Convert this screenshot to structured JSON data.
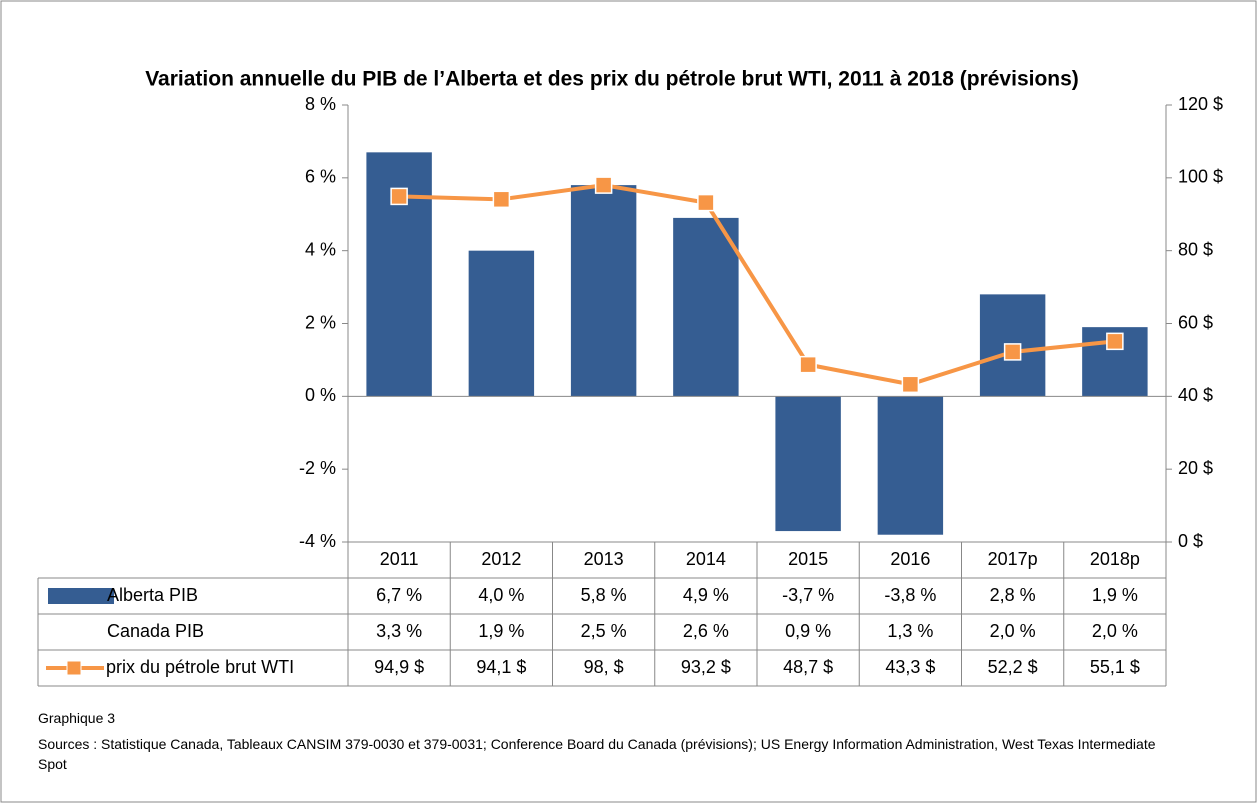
{
  "chart_data": {
    "type": "bar",
    "title": "Variation annuelle du PIB de l’Alberta et des prix du pétrole brut WTI, 2011 à 2018 (prévisions)",
    "categories": [
      "2011",
      "2012",
      "2013",
      "2014",
      "2015",
      "2016",
      "2017p",
      "2018p"
    ],
    "series": [
      {
        "name": "Alberta PIB",
        "type": "bar",
        "color": "#355d92",
        "values": [
          6.7,
          4.0,
          5.8,
          4.9,
          -3.7,
          -3.8,
          2.8,
          1.9
        ],
        "value_labels": [
          "6,7 %",
          "4,0 %",
          "5,8 %",
          "4,9 %",
          "-3,7 %",
          "-3,8 %",
          "2,8 %",
          "1,9 %"
        ]
      },
      {
        "name": "Canada PIB",
        "values": [
          3.3,
          1.9,
          2.5,
          2.6,
          0.9,
          1.3,
          2.0,
          2.0
        ],
        "value_labels": [
          "3,3 %",
          "1,9 %",
          "2,5 %",
          "2,6 %",
          "0,9 %",
          "1,3 %",
          "2,0 %",
          "2,0 %"
        ]
      },
      {
        "name": "prix du pétrole brut WTI",
        "type": "line",
        "axis": "y2",
        "color": "#f79646",
        "values": [
          94.9,
          94.1,
          98,
          93.2,
          48.7,
          43.3,
          52.2,
          55.1
        ],
        "value_labels": [
          "94,9 $",
          "94,1 $",
          "98, $",
          "93,2 $",
          "48,7 $",
          "43,3 $",
          "52,2 $",
          "55,1 $"
        ]
      }
    ],
    "ylim": [
      -4,
      8
    ],
    "yticks": [
      {
        "value": -4,
        "label": "-4 %"
      },
      {
        "value": -2,
        "label": "-2 %"
      },
      {
        "value": 0,
        "label": "0 %"
      },
      {
        "value": 2,
        "label": "2 %"
      },
      {
        "value": 4,
        "label": "4 %"
      },
      {
        "value": 6,
        "label": "6 %"
      },
      {
        "value": 8,
        "label": "8 %"
      }
    ],
    "y2lim": [
      0,
      120
    ],
    "y2ticks": [
      {
        "value": 0,
        "label": "0 $"
      },
      {
        "value": 20,
        "label": "20 $"
      },
      {
        "value": 40,
        "label": "40 $"
      },
      {
        "value": 60,
        "label": "60 $"
      },
      {
        "value": 80,
        "label": "80 $"
      },
      {
        "value": 100,
        "label": "100 $"
      },
      {
        "value": 120,
        "label": "120 $"
      }
    ],
    "grid": false,
    "caption": "Graphique 3",
    "source": "Sources : Statistique Canada, Tableaux CANSIM 379-0030 et 379-0031; Conference Board du Canada (prévisions); US Energy Information Administration, West Texas Intermediate Spot"
  }
}
